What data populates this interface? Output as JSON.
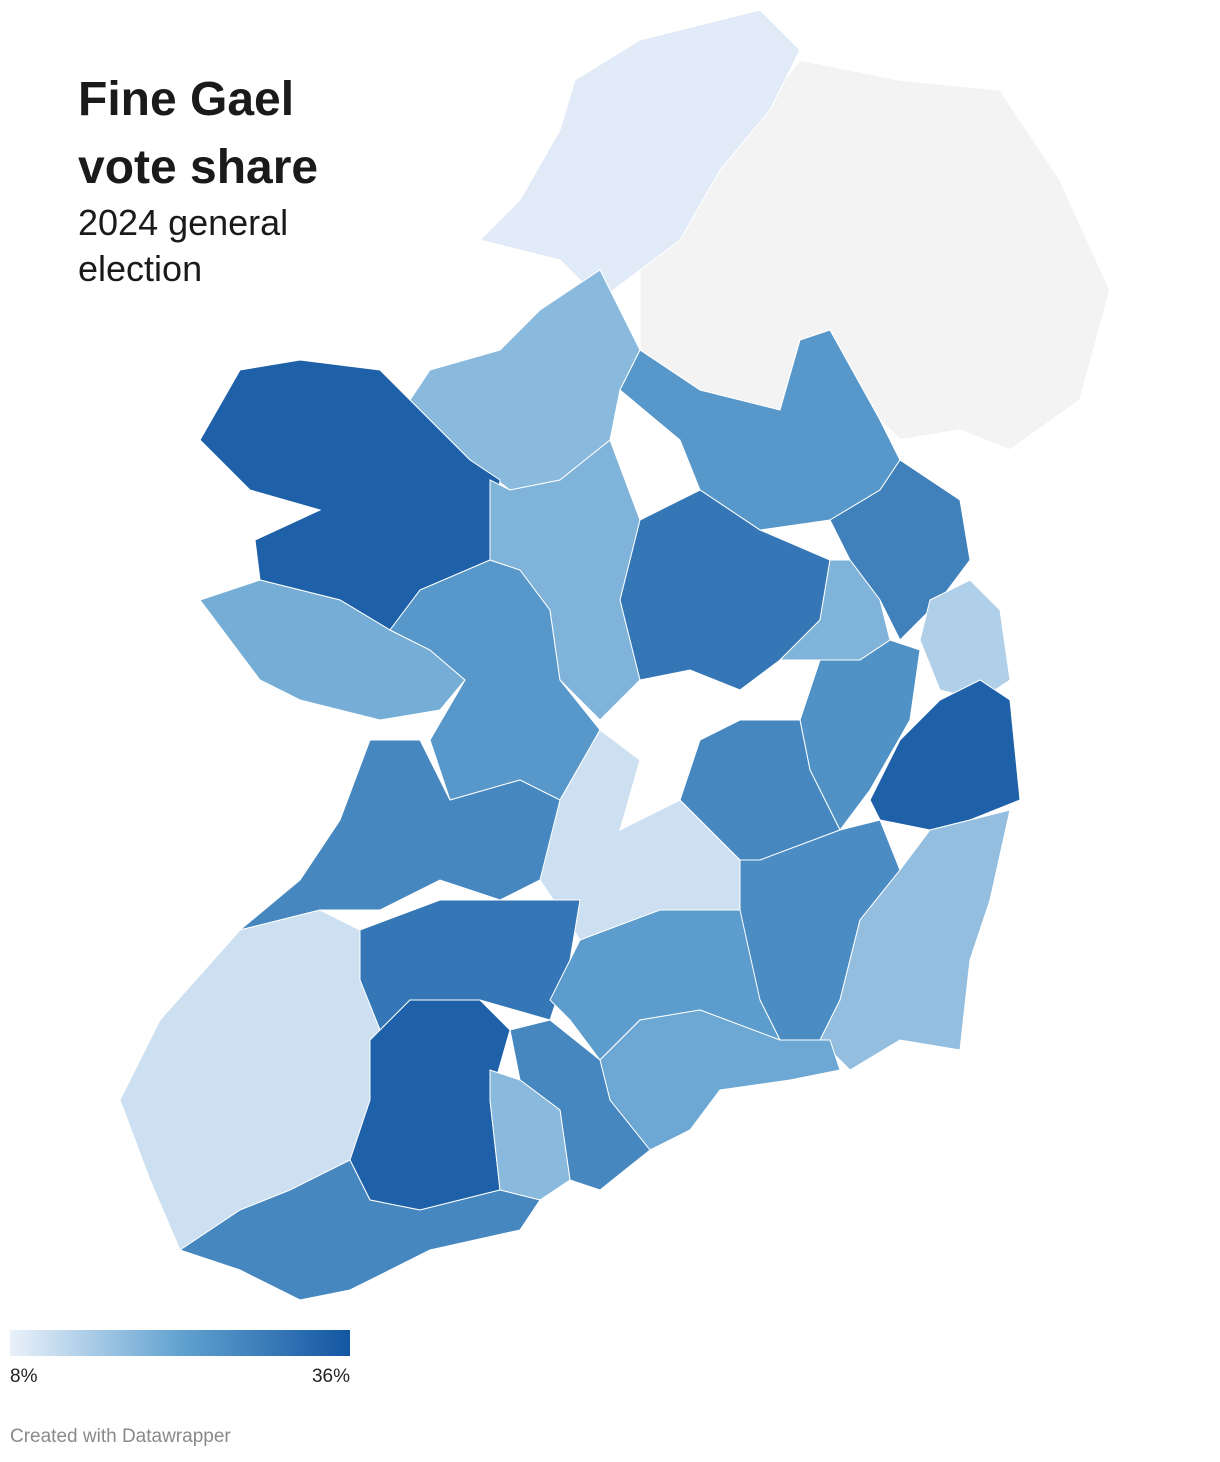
{
  "header": {
    "title": "Fine Gael vote share",
    "subtitle": "2024 general election"
  },
  "legend": {
    "range": [
      8,
      36
    ],
    "ticks": [
      {
        "value": 8,
        "label": "8%"
      },
      {
        "value": 36,
        "label": "36%"
      }
    ],
    "colors": [
      "#eaf1fa",
      "#62a2d0",
      "#1356a2"
    ]
  },
  "regions": [
    {
      "value": 9
    },
    {
      "value": 18
    },
    {
      "value": 34
    },
    {
      "value": 20
    },
    {
      "value": 24
    },
    {
      "value": 19
    },
    {
      "value": 24
    },
    {
      "value": 30
    },
    {
      "value": 28
    },
    {
      "value": 19
    },
    {
      "value": 14
    },
    {
      "value": 34
    },
    {
      "value": 25
    },
    {
      "value": 11
    },
    {
      "value": 27
    },
    {
      "value": 27
    },
    {
      "value": 26
    },
    {
      "value": 17
    },
    {
      "value": 30
    },
    {
      "value": 23
    },
    {
      "value": 21
    },
    {
      "value": 11
    },
    {
      "value": 34
    },
    {
      "value": 27
    },
    {
      "value": 18
    },
    {
      "value": 27
    }
  ],
  "footer": "Created with Datawrapper"
}
